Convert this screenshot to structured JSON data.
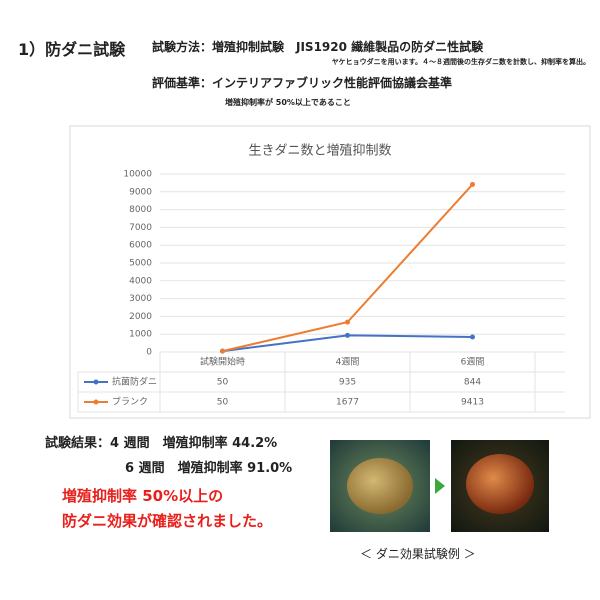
{
  "header": {
    "heading": "1）防ダニ試験",
    "method": "試験方法：増殖抑制試験　JIS1920 繊維製品の防ダニ性試験",
    "method_note": "ヤケヒョウダニを用います。４～８週間後の生存ダニ数を計数し、抑制率を算出。",
    "criteria": "評価基準：インテリアファブリック性能評価協議会基準",
    "criteria_note": "増殖抑制率が 50%以上であること"
  },
  "chart_data": {
    "type": "line",
    "title": "生きダニ数と増殖抑制数",
    "categories": [
      "試験開始時",
      "4週間",
      "6週間"
    ],
    "series": [
      {
        "name": "抗菌防ダニ",
        "color": "#4472c4",
        "values": [
          50,
          935,
          844
        ]
      },
      {
        "name": "ブランク",
        "color": "#ed7d31",
        "values": [
          50,
          1677,
          9413
        ]
      }
    ],
    "ylim": [
      0,
      10000
    ],
    "yticks": [
      0,
      1000,
      2000,
      3000,
      4000,
      5000,
      6000,
      7000,
      8000,
      9000,
      10000
    ],
    "grid": true
  },
  "results": {
    "line1": "試験結果：4 週間　増殖抑制率 44.2%",
    "line2": "6 週間　増殖抑制率 91.0%",
    "conclusion1": "増殖抑制率 50%以上の",
    "conclusion2": "防ダニ効果が確認されました。"
  },
  "photos": {
    "caption": "＜ ダニ効果試験例 ＞"
  }
}
